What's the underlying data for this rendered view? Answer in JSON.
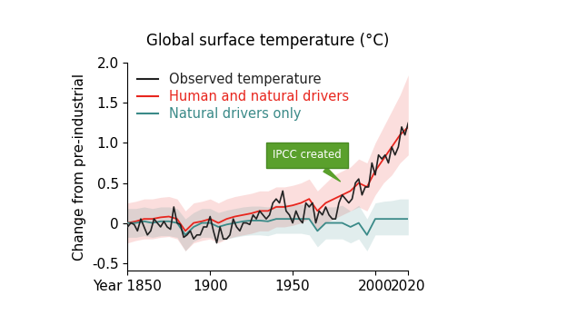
{
  "chart_data": {
    "type": "line",
    "title": "Global surface temperature (°C)",
    "y_label": "Change from pre-industrial",
    "xlim": [
      1850,
      2020
    ],
    "xticks": [
      {
        "value": 1850,
        "label": "Year 1850"
      },
      1900,
      1950,
      2000,
      2020
    ],
    "ylim": [
      -0.6,
      2.0
    ],
    "yticks": [
      -0.5,
      0,
      0.5,
      {
        "value": 1.0,
        "label": "1.0"
      },
      1.5,
      {
        "value": 2.0,
        "label": "2.0"
      }
    ],
    "grid": false,
    "legend": "upper left",
    "annotations": [
      {
        "text": "IPCC created",
        "x": 1980,
        "y": 0.5
      }
    ],
    "series": [
      {
        "name": "Observed temperature",
        "color": "#222222",
        "x": [
          1850,
          1852,
          1854,
          1856,
          1858,
          1860,
          1862,
          1864,
          1866,
          1868,
          1870,
          1872,
          1874,
          1876,
          1878,
          1880,
          1882,
          1884,
          1886,
          1888,
          1890,
          1892,
          1894,
          1896,
          1898,
          1900,
          1902,
          1904,
          1906,
          1908,
          1910,
          1912,
          1914,
          1916,
          1918,
          1920,
          1922,
          1924,
          1926,
          1928,
          1930,
          1932,
          1934,
          1936,
          1938,
          1940,
          1942,
          1944,
          1946,
          1948,
          1950,
          1952,
          1954,
          1956,
          1958,
          1960,
          1962,
          1964,
          1966,
          1968,
          1970,
          1972,
          1974,
          1976,
          1978,
          1980,
          1982,
          1984,
          1986,
          1988,
          1990,
          1992,
          1994,
          1996,
          1998,
          2000,
          2002,
          2004,
          2006,
          2008,
          2010,
          2012,
          2014,
          2016,
          2018,
          2020
        ],
        "values": [
          -0.05,
          0.0,
          -0.02,
          -0.1,
          0.05,
          -0.05,
          -0.15,
          -0.1,
          0.05,
          0.0,
          -0.05,
          0.02,
          -0.05,
          -0.08,
          0.2,
          0.0,
          -0.02,
          -0.18,
          -0.15,
          -0.1,
          -0.2,
          -0.15,
          -0.15,
          -0.05,
          -0.05,
          0.08,
          -0.1,
          -0.25,
          -0.05,
          -0.2,
          -0.2,
          -0.15,
          0.05,
          -0.05,
          -0.1,
          0.0,
          0.0,
          -0.02,
          0.1,
          0.05,
          0.15,
          0.1,
          0.05,
          0.1,
          0.25,
          0.3,
          0.25,
          0.4,
          0.15,
          0.1,
          0.0,
          0.15,
          0.05,
          0.0,
          0.25,
          0.2,
          0.25,
          0.0,
          0.15,
          0.1,
          0.2,
          0.1,
          0.05,
          0.05,
          0.25,
          0.35,
          0.3,
          0.25,
          0.3,
          0.5,
          0.55,
          0.35,
          0.45,
          0.45,
          0.75,
          0.6,
          0.85,
          0.8,
          0.85,
          0.75,
          0.95,
          0.85,
          0.95,
          1.2,
          1.1,
          1.25
        ]
      },
      {
        "name": "Human and natural drivers",
        "color": "#e8261e",
        "x": [
          1850,
          1855,
          1860,
          1865,
          1870,
          1875,
          1880,
          1885,
          1890,
          1895,
          1900,
          1905,
          1910,
          1915,
          1920,
          1925,
          1930,
          1935,
          1940,
          1945,
          1950,
          1955,
          1960,
          1965,
          1970,
          1975,
          1980,
          1985,
          1990,
          1995,
          2000,
          2005,
          2010,
          2015,
          2020
        ],
        "values": [
          0.0,
          0.02,
          0.05,
          0.05,
          0.07,
          0.08,
          0.05,
          -0.1,
          0.0,
          0.02,
          0.05,
          0.0,
          0.05,
          0.08,
          0.1,
          0.12,
          0.15,
          0.15,
          0.2,
          0.2,
          0.22,
          0.25,
          0.3,
          0.15,
          0.25,
          0.3,
          0.35,
          0.4,
          0.5,
          0.45,
          0.65,
          0.8,
          0.95,
          1.1,
          1.2
        ],
        "lower": [
          -0.25,
          -0.22,
          -0.2,
          -0.2,
          -0.18,
          -0.17,
          -0.2,
          -0.35,
          -0.25,
          -0.22,
          -0.2,
          -0.25,
          -0.2,
          -0.17,
          -0.15,
          -0.13,
          -0.1,
          -0.1,
          -0.05,
          -0.05,
          -0.03,
          0.0,
          0.05,
          -0.1,
          0.0,
          0.05,
          0.1,
          0.15,
          0.2,
          0.15,
          0.35,
          0.5,
          0.6,
          0.75,
          0.85
        ],
        "upper": [
          0.25,
          0.27,
          0.3,
          0.3,
          0.32,
          0.33,
          0.3,
          0.15,
          0.25,
          0.27,
          0.3,
          0.25,
          0.3,
          0.33,
          0.35,
          0.37,
          0.4,
          0.4,
          0.45,
          0.45,
          0.47,
          0.5,
          0.55,
          0.4,
          0.5,
          0.6,
          0.65,
          0.7,
          0.8,
          0.75,
          1.0,
          1.2,
          1.4,
          1.6,
          1.85
        ]
      },
      {
        "name": "Natural drivers only",
        "color": "#3a8a88",
        "x": [
          1850,
          1855,
          1860,
          1865,
          1870,
          1875,
          1880,
          1885,
          1890,
          1895,
          1900,
          1905,
          1910,
          1915,
          1920,
          1925,
          1930,
          1935,
          1940,
          1945,
          1950,
          1955,
          1960,
          1965,
          1970,
          1975,
          1980,
          1985,
          1990,
          1995,
          2000,
          2005,
          2010,
          2015,
          2020
        ],
        "values": [
          0.0,
          0.0,
          0.02,
          0.0,
          0.02,
          0.02,
          0.0,
          -0.15,
          -0.05,
          0.0,
          0.0,
          -0.05,
          -0.02,
          0.0,
          0.02,
          0.03,
          0.03,
          0.02,
          0.05,
          0.05,
          0.05,
          0.05,
          0.05,
          -0.1,
          0.0,
          0.0,
          0.0,
          -0.05,
          0.0,
          -0.15,
          0.05,
          0.05,
          0.05,
          0.05,
          0.05
        ],
        "lower": [
          -0.18,
          -0.18,
          -0.16,
          -0.18,
          -0.16,
          -0.16,
          -0.18,
          -0.35,
          -0.23,
          -0.18,
          -0.18,
          -0.23,
          -0.2,
          -0.18,
          -0.16,
          -0.15,
          -0.15,
          -0.16,
          -0.13,
          -0.13,
          -0.13,
          -0.13,
          -0.15,
          -0.3,
          -0.2,
          -0.2,
          -0.2,
          -0.25,
          -0.2,
          -0.35,
          -0.15,
          -0.15,
          -0.15,
          -0.15,
          -0.15
        ],
        "upper": [
          0.18,
          0.18,
          0.2,
          0.18,
          0.2,
          0.2,
          0.18,
          0.05,
          0.13,
          0.18,
          0.18,
          0.13,
          0.16,
          0.18,
          0.2,
          0.21,
          0.21,
          0.2,
          0.23,
          0.23,
          0.23,
          0.23,
          0.25,
          0.1,
          0.2,
          0.2,
          0.22,
          0.15,
          0.22,
          0.05,
          0.25,
          0.27,
          0.28,
          0.3,
          0.3
        ]
      }
    ]
  }
}
